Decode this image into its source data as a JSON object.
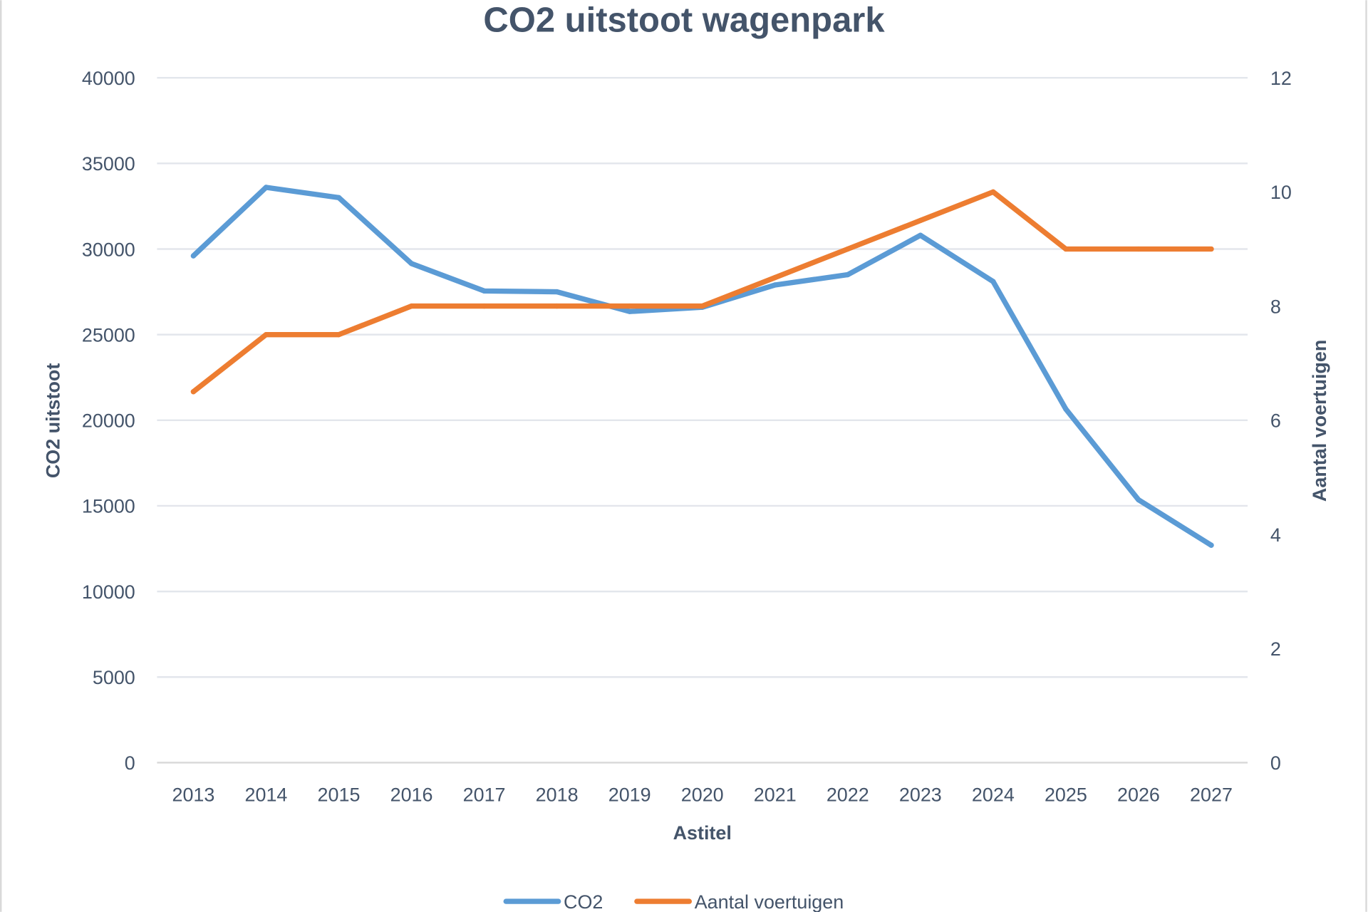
{
  "chart_data": {
    "type": "line",
    "title": "CO2 uitstoot wagenpark",
    "xlabel": "Astitel",
    "ylabel": "CO2 uitstoot",
    "y2label": "Aantal voertuigen",
    "categories": [
      "2013",
      "2014",
      "2015",
      "2016",
      "2017",
      "2018",
      "2019",
      "2020",
      "2021",
      "2022",
      "2023",
      "2024",
      "2025",
      "2026",
      "2027"
    ],
    "ylim": [
      0,
      40000
    ],
    "yticks": [
      0,
      5000,
      10000,
      15000,
      20000,
      25000,
      30000,
      35000,
      40000
    ],
    "y2lim": [
      0,
      12
    ],
    "y2ticks": [
      0,
      2,
      4,
      6,
      8,
      10,
      12
    ],
    "grid": true,
    "legend_position": "bottom",
    "series": [
      {
        "name": "CO2",
        "axis": "left",
        "color": "#5b9bd5",
        "values": [
          29600,
          33600,
          33000,
          29150,
          27550,
          27500,
          26350,
          26600,
          27900,
          28500,
          30800,
          28100,
          20650,
          15350,
          12700
        ]
      },
      {
        "name": "Aantal voertuigen",
        "axis": "right",
        "color": "#ed7d31",
        "values": [
          6.5,
          7.5,
          7.5,
          8,
          8,
          8,
          8,
          8,
          8.5,
          9,
          9.5,
          10,
          9,
          9,
          9
        ]
      }
    ]
  }
}
